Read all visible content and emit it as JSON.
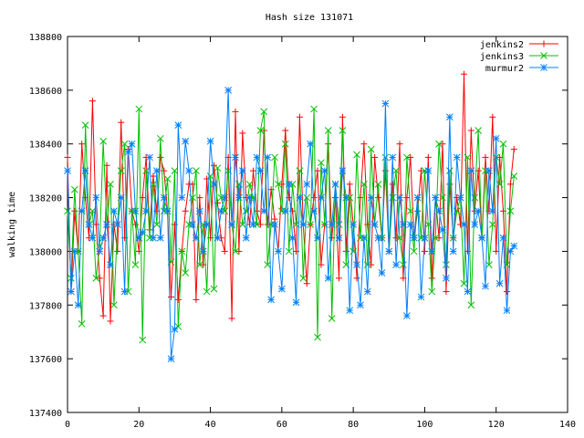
{
  "chart_data": {
    "type": "line",
    "title": "Hash size 131071",
    "xlabel": "",
    "ylabel": "walking time",
    "xlim": [
      0,
      140
    ],
    "ylim": [
      137400,
      138800
    ],
    "xticks": [
      "0",
      "20",
      "40",
      "60",
      "80",
      "100",
      "120",
      "140"
    ],
    "yticks": [
      "137400",
      "137600",
      "137800",
      "138000",
      "138200",
      "138400",
      "138600",
      "138800"
    ],
    "legend_position": "top-right",
    "grid": false,
    "x": [
      0,
      1,
      2,
      3,
      4,
      5,
      6,
      7,
      8,
      9,
      10,
      11,
      12,
      13,
      14,
      15,
      16,
      17,
      18,
      19,
      20,
      21,
      22,
      23,
      24,
      25,
      26,
      27,
      28,
      29,
      30,
      31,
      32,
      33,
      34,
      35,
      36,
      37,
      38,
      39,
      40,
      41,
      42,
      43,
      44,
      45,
      46,
      47,
      48,
      49,
      50,
      51,
      52,
      53,
      54,
      55,
      56,
      57,
      58,
      59,
      60,
      61,
      62,
      63,
      64,
      65,
      66,
      67,
      68,
      69,
      70,
      71,
      72,
      73,
      74,
      75,
      76,
      77,
      78,
      79,
      80,
      81,
      82,
      83,
      84,
      85,
      86,
      87,
      88,
      89,
      90,
      91,
      92,
      93,
      94,
      95,
      96,
      97,
      98,
      99,
      100,
      101,
      102,
      103,
      104,
      105,
      106,
      107,
      108,
      109,
      110,
      111,
      112,
      113,
      114,
      115,
      116,
      117,
      118,
      119,
      120,
      121,
      122,
      123,
      124,
      125
    ],
    "series": [
      {
        "name": "jenkins2",
        "color": "#ff0000",
        "marker": "+",
        "values": [
          138350,
          137850,
          138150,
          138000,
          138400,
          138200,
          138050,
          138560,
          138100,
          137900,
          137760,
          138320,
          137740,
          138100,
          138000,
          138480,
          138050,
          138380,
          138150,
          138100,
          138000,
          138200,
          138350,
          138080,
          138280,
          138150,
          138350,
          138300,
          138150,
          137830,
          138100,
          137820,
          138000,
          138150,
          138250,
          138250,
          137820,
          138200,
          137950,
          138270,
          138050,
          138320,
          138180,
          138050,
          138000,
          138350,
          137750,
          138520,
          138000,
          138440,
          138200,
          138100,
          138300,
          138150,
          138100,
          138450,
          138100,
          138230,
          138120,
          138000,
          138250,
          138450,
          138200,
          138150,
          138000,
          138500,
          138100,
          137880,
          138100,
          138200,
          138300,
          137950,
          138100,
          138400,
          138050,
          138200,
          137900,
          138500,
          138000,
          138250,
          138100,
          137900,
          138200,
          138400,
          138100,
          137950,
          138350,
          138200,
          138050,
          138300,
          138000,
          138250,
          138050,
          138400,
          137900,
          138200,
          138350,
          138050,
          138150,
          138300,
          138000,
          138350,
          137900,
          138200,
          138050,
          138400,
          137850,
          138250,
          138050,
          138200,
          138100,
          138660,
          138000,
          138450,
          138150,
          138300,
          138050,
          138350,
          138150,
          138500,
          138000,
          138350,
          138150,
          137850,
          138250,
          138380
        ]
      },
      {
        "name": "jenkins3",
        "color": "#00c000",
        "marker": "x",
        "values": [
          138150,
          137900,
          138230,
          138000,
          137730,
          138470,
          138100,
          138150,
          137900,
          138020,
          138410,
          138100,
          138250,
          137800,
          138100,
          138300,
          138400,
          137850,
          138150,
          137950,
          138530,
          137670,
          138300,
          138050,
          138250,
          138100,
          138420,
          138150,
          138270,
          137960,
          138300,
          137720,
          138000,
          137920,
          138100,
          138200,
          138300,
          137950,
          138100,
          137850,
          138280,
          137860,
          138310,
          138200,
          138150,
          138300,
          138100,
          138000,
          138250,
          138100,
          138150,
          138250,
          138200,
          138100,
          138450,
          138520,
          137950,
          138100,
          138350,
          138250,
          138150,
          138400,
          138000,
          138250,
          138100,
          138300,
          137900,
          138200,
          138100,
          138530,
          137680,
          138330,
          138100,
          138450,
          137750,
          138250,
          138100,
          138450,
          137950,
          138200,
          138000,
          138360,
          138050,
          138250,
          137950,
          138380,
          138100,
          138250,
          138050,
          138350,
          138000,
          138200,
          138300,
          138050,
          137950,
          138350,
          138150,
          138000,
          138200,
          138050,
          138300,
          138100,
          137850,
          138050,
          138400,
          138200,
          137950,
          138300,
          138050,
          138150,
          138200,
          137880,
          138350,
          137800,
          138200,
          138450,
          138050,
          138300,
          137950,
          138100,
          138350,
          138250,
          138400,
          137950,
          138150,
          138280
        ]
      },
      {
        "name": "murmur2",
        "color": "#0080ff",
        "marker": "*",
        "values": [
          138300,
          137850,
          138000,
          137800,
          138150,
          138300,
          138100,
          138050,
          138200,
          138000,
          138050,
          138100,
          137950,
          138150,
          138100,
          138200,
          137850,
          138370,
          138400,
          138150,
          138050,
          138070,
          138150,
          138350,
          138050,
          138300,
          138050,
          138200,
          138150,
          137600,
          137710,
          138470,
          138200,
          138410,
          138300,
          138100,
          138050,
          138150,
          138000,
          138100,
          138410,
          138250,
          138050,
          138150,
          138200,
          138600,
          138100,
          138350,
          138200,
          138300,
          138050,
          138200,
          138100,
          138350,
          138300,
          138150,
          138350,
          137820,
          138100,
          138000,
          137860,
          138150,
          138250,
          138050,
          137810,
          138200,
          138100,
          138250,
          138400,
          138150,
          138050,
          138200,
          138300,
          137900,
          138100,
          138250,
          138050,
          138300,
          138200,
          137780,
          138100,
          137950,
          137800,
          138050,
          137850,
          138200,
          138100,
          138050,
          137920,
          138550,
          138000,
          138350,
          137950,
          138200,
          138100,
          137760,
          138100,
          138050,
          138200,
          137830,
          138050,
          138300,
          138000,
          138200,
          138150,
          138080,
          137900,
          138500,
          138000,
          138350,
          138200,
          138100,
          137850,
          138300,
          138100,
          138150,
          138050,
          137870,
          138300,
          138150,
          138420,
          137880,
          138050,
          137780,
          138000,
          138020
        ]
      }
    ]
  }
}
